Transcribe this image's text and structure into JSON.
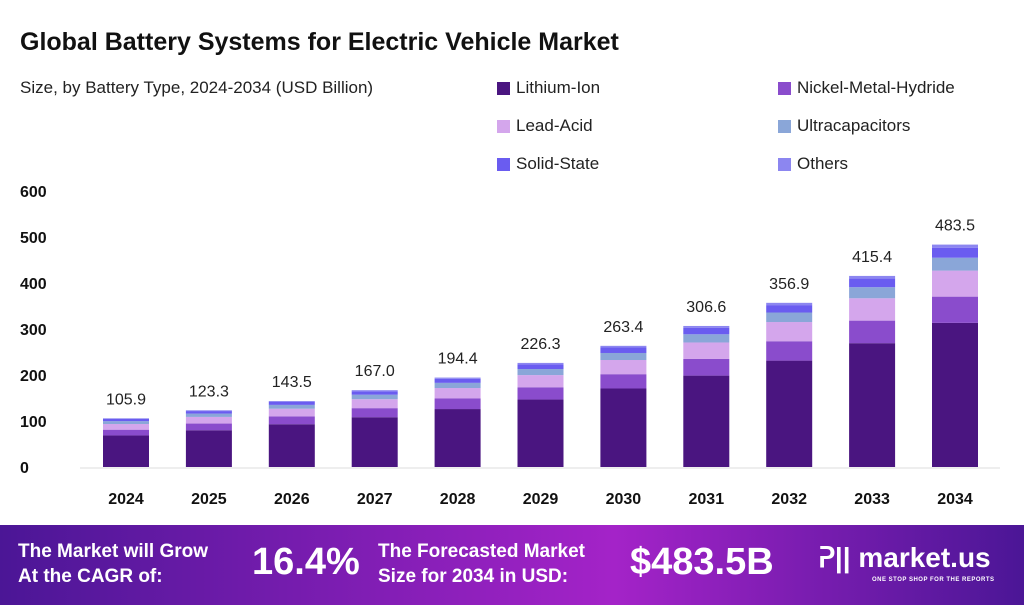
{
  "title": "Global Battery Systems for Electric Vehicle Market",
  "subtitle": "Size, by Battery Type, 2024-2034 (USD Billion)",
  "legend": [
    {
      "label": "Lithium-Ion",
      "color": "#4a1580"
    },
    {
      "label": "Nickel-Metal-Hydride",
      "color": "#8a4ccc"
    },
    {
      "label": "Lead-Acid",
      "color": "#d4a6ec"
    },
    {
      "label": "Ultracapacitors",
      "color": "#8aa6d8"
    },
    {
      "label": "Solid-State",
      "color": "#6a5cf0"
    },
    {
      "label": "Others",
      "color": "#8c86f0"
    }
  ],
  "chart_data": {
    "type": "bar",
    "stacked": true,
    "title": "Global Battery Systems for Electric Vehicle Market",
    "subtitle": "Size, by Battery Type, 2024-2034 (USD Billion)",
    "categories": [
      "2024",
      "2025",
      "2026",
      "2027",
      "2028",
      "2029",
      "2030",
      "2031",
      "2032",
      "2033",
      "2034"
    ],
    "totals": [
      105.9,
      123.3,
      143.5,
      167.0,
      194.4,
      226.3,
      263.4,
      306.6,
      356.9,
      415.4,
      483.5
    ],
    "series_shares_estimated": {
      "Lithium-Ion": 0.648,
      "Nickel-Metal-Hydride": 0.118,
      "Lead-Acid": 0.117,
      "Ultracapacitors": 0.058,
      "Solid-State": 0.045,
      "Others": 0.014
    },
    "yticks": [
      0,
      100,
      200,
      300,
      400,
      500,
      600
    ],
    "ylim": [
      0,
      600
    ],
    "grid": false,
    "legend_position": "top-right"
  },
  "footer": {
    "cagr_label_1": "The Market will Grow",
    "cagr_label_2": "At the CAGR of:",
    "cagr_value": "16.4%",
    "forecast_label_1": "The Forecasted Market",
    "forecast_label_2": "Size for 2034 in USD:",
    "forecast_value": "$483.5B",
    "brand": "market.us",
    "tagline": "ONE STOP SHOP FOR THE REPORTS"
  }
}
